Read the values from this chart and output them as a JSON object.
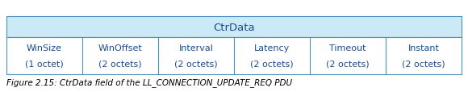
{
  "title": "CtrData",
  "columns": [
    {
      "label": "WinSize",
      "sub": "(1 octet)"
    },
    {
      "label": "WinOffset",
      "sub": "(2 octets)"
    },
    {
      "label": "Interval",
      "sub": "(2 octets)"
    },
    {
      "label": "Latency",
      "sub": "(2 octets)"
    },
    {
      "label": "Timeout",
      "sub": "(2 octets)"
    },
    {
      "label": "Instant",
      "sub": "(2 octets)"
    }
  ],
  "caption": "Figure 2.15: CtrData field of the LL_CONNECTION_UPDATE_REQ PDU",
  "header_bg": "#cce9f8",
  "cell_bg": "#ffffff",
  "border_color": "#4a90b8",
  "text_color": "#1a4d8f",
  "caption_color": "#000000",
  "header_fontsize": 9.5,
  "cell_fontsize": 8.0,
  "caption_fontsize": 7.5
}
